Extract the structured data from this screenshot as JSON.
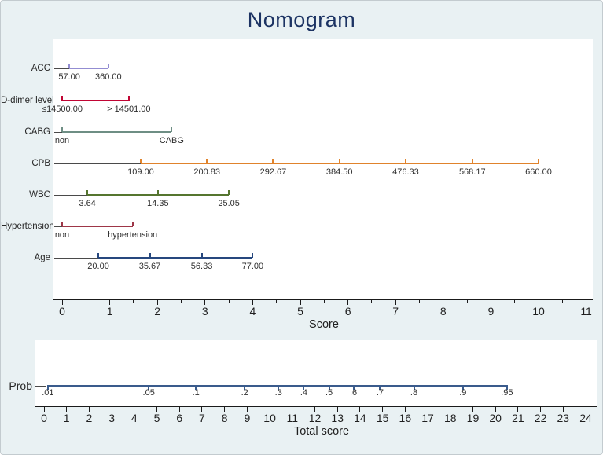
{
  "title": "Nomogram",
  "background_color": "#e9f1f3",
  "title_color": "#1c3363",
  "chart_data": [
    {
      "type": "nomogram",
      "title": "Nomogram",
      "xlabel": "Score",
      "xlim": [
        0,
        11
      ],
      "x_major_tick_step": 1,
      "x_minor_tick_step": 0.5,
      "grid": false,
      "rows": [
        {
          "label": "ACC",
          "color": "#938dd2",
          "range": [
            0.15,
            0.97
          ],
          "ticks": [
            {
              "score": 0.15,
              "text": "57.00"
            },
            {
              "score": 0.97,
              "text": "360.00"
            }
          ]
        },
        {
          "label": "D-dimer level",
          "color": "#c10534",
          "range": [
            0.0,
            1.4
          ],
          "ticks": [
            {
              "score": 0.0,
              "text": "≤14500.00"
            },
            {
              "score": 1.4,
              "text": "> 14501.00"
            }
          ]
        },
        {
          "label": "CABG",
          "color": "#6e8e84",
          "range": [
            0.0,
            2.3
          ],
          "ticks": [
            {
              "score": 0.0,
              "text": "non"
            },
            {
              "score": 2.3,
              "text": "CABG"
            }
          ]
        },
        {
          "label": "CPB",
          "color": "#e0832c",
          "range": [
            1.65,
            10.0
          ],
          "ticks": [
            {
              "score": 1.65,
              "text": "109.00"
            },
            {
              "score": 3.04,
              "text": "200.83"
            },
            {
              "score": 4.43,
              "text": "292.67"
            },
            {
              "score": 5.82,
              "text": "384.50"
            },
            {
              "score": 7.21,
              "text": "476.33"
            },
            {
              "score": 8.61,
              "text": "568.17"
            },
            {
              "score": 10.0,
              "text": "660.00"
            }
          ]
        },
        {
          "label": "WBC",
          "color": "#55752f",
          "range": [
            0.53,
            3.5
          ],
          "ticks": [
            {
              "score": 0.53,
              "text": "3.64"
            },
            {
              "score": 2.01,
              "text": "14.35"
            },
            {
              "score": 3.5,
              "text": "25.05"
            }
          ]
        },
        {
          "label": "Hypertension",
          "color": "#9e3648",
          "range": [
            0.0,
            1.48
          ],
          "ticks": [
            {
              "score": 0.0,
              "text": "non"
            },
            {
              "score": 1.48,
              "text": "hypertension"
            }
          ]
        },
        {
          "label": "Age",
          "color": "#26477e",
          "range": [
            0.76,
            4.0
          ],
          "ticks": [
            {
              "score": 0.76,
              "text": "20.00"
            },
            {
              "score": 1.84,
              "text": "35.67"
            },
            {
              "score": 2.93,
              "text": "56.33"
            },
            {
              "score": 4.0,
              "text": "77.00"
            }
          ]
        }
      ]
    },
    {
      "type": "nomogram-probability-scale",
      "row_label": "Prob",
      "xlabel": "Total score",
      "xlim": [
        0,
        24
      ],
      "x_major_tick_step": 1,
      "line_color": "#3a5b8c",
      "prob_ticks": [
        {
          "label": ".01",
          "total_score": 0.17
        },
        {
          "label": ".05",
          "total_score": 4.64
        },
        {
          "label": ".1",
          "total_score": 6.73
        },
        {
          "label": ".2",
          "total_score": 8.89
        },
        {
          "label": ".3",
          "total_score": 10.39
        },
        {
          "label": ".4",
          "total_score": 11.51
        },
        {
          "label": ".5",
          "total_score": 12.63
        },
        {
          "label": ".6",
          "total_score": 13.71
        },
        {
          "label": ".7",
          "total_score": 14.89
        },
        {
          "label": ".8",
          "total_score": 16.39
        },
        {
          "label": ".9",
          "total_score": 18.56
        },
        {
          "label": ".95",
          "total_score": 20.51
        }
      ]
    }
  ]
}
